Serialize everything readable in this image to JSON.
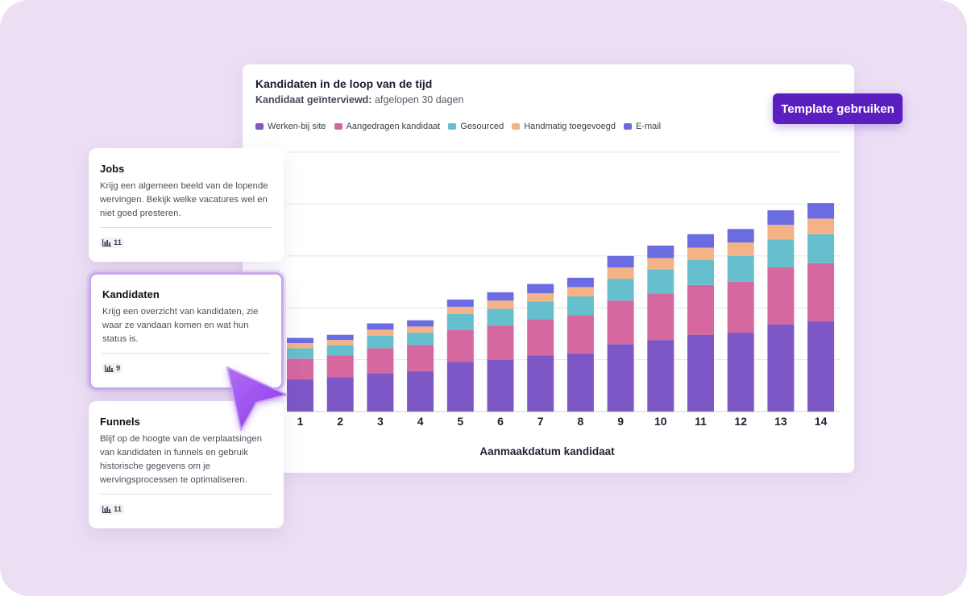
{
  "chart_data": {
    "type": "bar",
    "stacked": true,
    "title": "Kandidaten in de loop van de tijd",
    "subtitle_label": "Kandidaat geïnterviewd:",
    "subtitle_value": "afgelopen 30 dagen",
    "xlabel": "Aanmaakdatum kandidaat",
    "ylabel": "",
    "ylim": [
      0,
      250
    ],
    "grid": true,
    "legend_position": "top-left",
    "categories": [
      "1",
      "2",
      "3",
      "4",
      "5",
      "6",
      "7",
      "8",
      "9",
      "10",
      "11",
      "12",
      "13",
      "14"
    ],
    "series": [
      {
        "name": "Werken-bij site",
        "color": "#7e57c6",
        "values": [
          31,
          33,
          37,
          39,
          48,
          50,
          54,
          56,
          65,
          69,
          74,
          76,
          84,
          87
        ]
      },
      {
        "name": "Aangedragen kandidaat",
        "color": "#d4689f",
        "values": [
          20,
          21,
          24,
          25,
          31,
          33,
          35,
          37,
          42,
          45,
          48,
          49,
          55,
          56
        ]
      },
      {
        "name": "Gesourced",
        "color": "#66bfcd",
        "values": [
          10,
          10,
          12,
          12,
          15,
          16,
          17,
          18,
          21,
          23,
          24,
          25,
          27,
          28
        ]
      },
      {
        "name": "Handmatig toegevoegd",
        "color": "#f3b387",
        "values": [
          5,
          5,
          6,
          6,
          7,
          8,
          8,
          9,
          11,
          11,
          12,
          13,
          14,
          15
        ]
      },
      {
        "name": "E-mail",
        "color": "#6b6be2",
        "values": [
          5,
          5,
          6,
          6,
          7,
          8,
          9,
          9,
          11,
          12,
          13,
          13,
          14,
          15
        ]
      }
    ]
  },
  "actions": {
    "template_button": "Template gebruiken"
  },
  "cards": [
    {
      "title": "Jobs",
      "description": "Krijg een algemeen beeld van de lopende wervingen. Bekijk welke vacatures wel en niet goed presteren.",
      "count": "11"
    },
    {
      "title": "Kandidaten",
      "description": "Krijg een overzicht van kandidaten, zie waar ze vandaan komen en wat hun status is.",
      "count": "9"
    },
    {
      "title": "Funnels",
      "description": "Blijf op de hoogte van de verplaatsingen van kandidaten in funnels en gebruik historische gegevens om je wervingsprocessen te optimaliseren.",
      "count": "11"
    }
  ],
  "colors": {
    "background": "#ecdff4",
    "accent": "#5b1fbf",
    "cursor": "#9b4ff0"
  }
}
